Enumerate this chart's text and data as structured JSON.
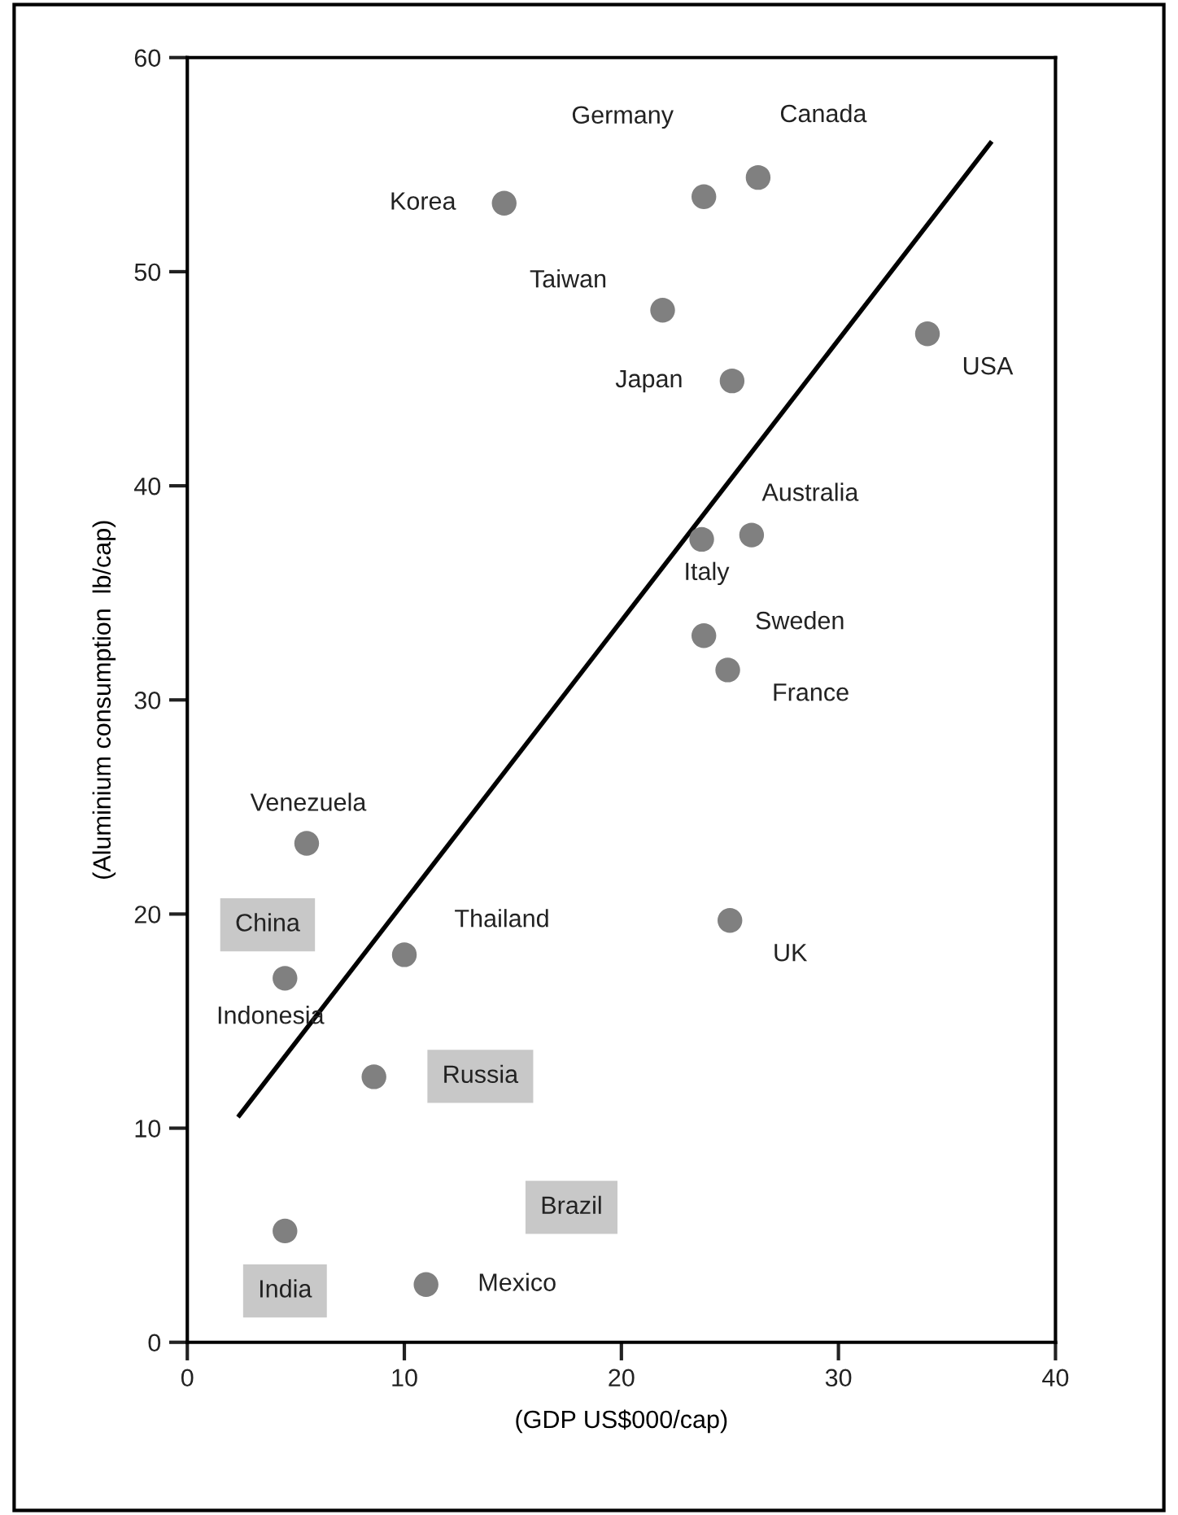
{
  "chart_data": {
    "type": "scatter",
    "xlabel": "(GDP US$000/cap)",
    "ylabel": "(Aluminium consumption  lb/cap)",
    "xlim": [
      0,
      40
    ],
    "ylim": [
      0,
      60
    ],
    "xticks": [
      0,
      10,
      20,
      30,
      40
    ],
    "yticks": [
      0,
      10,
      20,
      30,
      40,
      50,
      60
    ],
    "grid": false,
    "legend": false,
    "series": [
      {
        "color": "#808080",
        "marker": "circle",
        "x": [
          14.6,
          23.8,
          26.3,
          21.9,
          25.1,
          34.1,
          23.7,
          26.0,
          23.8,
          24.9,
          5.5,
          10.0,
          4.5,
          25.0,
          8.6,
          4.5,
          11.0
        ],
        "values": [
          53.2,
          53.5,
          54.4,
          48.2,
          44.9,
          47.1,
          37.5,
          37.7,
          33.0,
          31.4,
          23.3,
          18.1,
          17.0,
          19.7,
          12.4,
          5.2,
          2.7
        ]
      },
      {
        "type": "line",
        "color": "#000000",
        "x": [
          2.4,
          37.0
        ],
        "values": [
          10.6,
          56.0
        ]
      }
    ],
    "annotations": [
      {
        "text": "Korea",
        "x": 14.6,
        "y": 53.2
      },
      {
        "text": "Germany",
        "x": 23.8,
        "y": 53.5
      },
      {
        "text": "Canada",
        "x": 26.3,
        "y": 54.4
      },
      {
        "text": "Taiwan",
        "x": 21.9,
        "y": 48.2
      },
      {
        "text": "Japan",
        "x": 25.1,
        "y": 44.9
      },
      {
        "text": "USA",
        "x": 34.1,
        "y": 47.1
      },
      {
        "text": "Italy",
        "x": 23.7,
        "y": 37.5
      },
      {
        "text": "Australia",
        "x": 26.0,
        "y": 37.7
      },
      {
        "text": "Sweden",
        "x": 23.8,
        "y": 33.0
      },
      {
        "text": "France",
        "x": 24.9,
        "y": 31.4
      },
      {
        "text": "Venezuela",
        "x": 5.5,
        "y": 23.3
      },
      {
        "text": "Thailand",
        "x": 10.0,
        "y": 18.1
      },
      {
        "text": "Indonesia",
        "x": 4.5,
        "y": 17.0
      },
      {
        "text": "UK",
        "x": 25.0,
        "y": 19.7
      },
      {
        "text": "Mexico",
        "x": 11.0,
        "y": 2.7
      },
      "China",
      "Russia",
      "Brazil",
      "India"
    ]
  }
}
